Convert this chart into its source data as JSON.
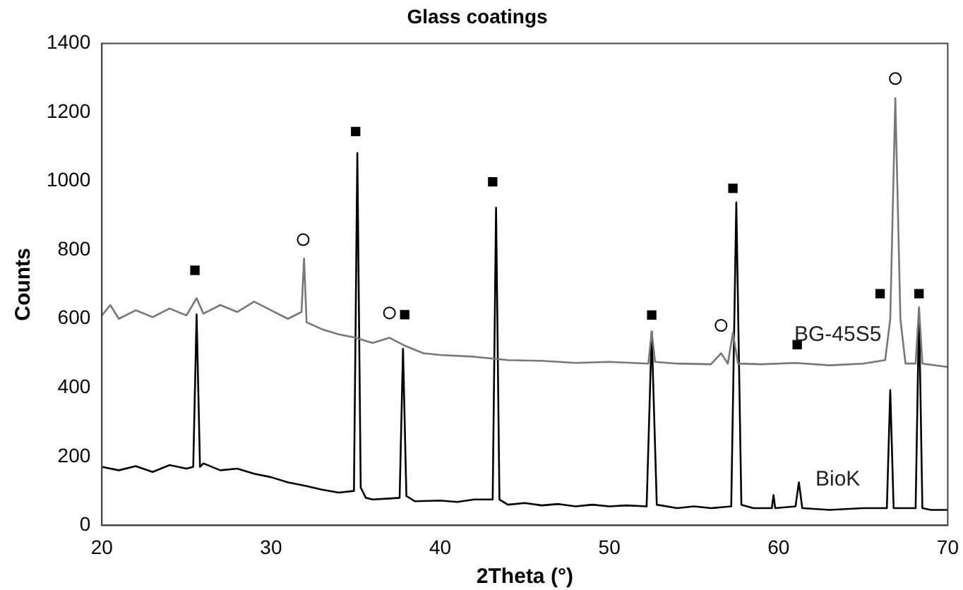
{
  "chart_data": {
    "type": "line",
    "title": "Glass coatings",
    "xlabel": "2Theta (°)",
    "ylabel": "Counts",
    "xlim": [
      20,
      70
    ],
    "xticks": [
      20,
      30,
      40,
      50,
      60,
      70
    ],
    "ylim": [
      0,
      1400
    ],
    "yticks": [
      0,
      200,
      400,
      600,
      800,
      1000,
      1200,
      1400
    ],
    "grid": false,
    "legend": false,
    "marker": "none",
    "line_style": "solid",
    "series": [
      {
        "name": "BG-45S5",
        "color": "#777777",
        "x": [
          20,
          20.5,
          21,
          22,
          23,
          24,
          25,
          25.6,
          26,
          27,
          28,
          29,
          30,
          31,
          31.8,
          31.95,
          32.1,
          33,
          34,
          35,
          36,
          37,
          38,
          39,
          40,
          42,
          44,
          46,
          48,
          50,
          52.3,
          52.5,
          52.7,
          54,
          56,
          56.6,
          57,
          57.3,
          57.6,
          59,
          61,
          63,
          65,
          66.3,
          66.6,
          66.9,
          67.2,
          67.5,
          68.1,
          68.3,
          68.5,
          70
        ],
        "values": [
          610,
          640,
          600,
          625,
          605,
          630,
          610,
          660,
          615,
          640,
          620,
          650,
          625,
          600,
          620,
          775,
          590,
          570,
          555,
          545,
          530,
          545,
          520,
          500,
          495,
          490,
          480,
          478,
          472,
          475,
          470,
          563,
          475,
          470,
          468,
          500,
          470,
          560,
          470,
          468,
          472,
          465,
          470,
          480,
          600,
          1241,
          600,
          470,
          470,
          634,
          470,
          460
        ]
      },
      {
        "name": "BioK",
        "color": "#000000",
        "x": [
          20,
          21,
          22,
          23,
          24,
          25,
          25.4,
          25.6,
          25.8,
          26,
          27,
          28,
          29,
          30,
          31,
          32,
          33,
          34,
          34.9,
          35.1,
          35.3,
          35.6,
          36,
          37,
          37.6,
          37.8,
          38,
          38.5,
          40,
          41,
          42,
          43.1,
          43.3,
          43.5,
          44,
          45,
          46,
          47,
          48,
          49,
          50,
          51,
          52.2,
          52.5,
          52.8,
          54,
          55,
          56,
          57.2,
          57.5,
          57.8,
          58.5,
          59.6,
          59.7,
          59.8,
          61,
          61.2,
          61.4,
          63,
          65,
          66.4,
          66.6,
          66.8,
          68.1,
          68.3,
          68.5,
          69,
          70
        ],
        "values": [
          170,
          160,
          172,
          155,
          175,
          165,
          170,
          613,
          170,
          180,
          160,
          165,
          150,
          140,
          125,
          115,
          104,
          95,
          100,
          1082,
          110,
          80,
          75,
          78,
          80,
          513,
          85,
          70,
          72,
          68,
          75,
          75,
          923,
          75,
          60,
          65,
          58,
          62,
          55,
          60,
          55,
          58,
          55,
          563,
          60,
          50,
          55,
          50,
          55,
          938,
          60,
          50,
          50,
          88,
          50,
          55,
          125,
          50,
          45,
          50,
          50,
          393,
          50,
          50,
          626,
          50,
          45,
          45
        ]
      },
      {
        "type": "scatter",
        "marker": "square",
        "color": "#000000",
        "x": [
          25.5,
          35,
          37.9,
          43.1,
          52.5,
          57.3,
          61.1,
          66,
          68.3
        ],
        "values": [
          741,
          1144,
          612,
          998,
          611,
          979,
          525,
          673,
          673
        ]
      },
      {
        "type": "scatter",
        "marker": "circle",
        "color": "#ffffff",
        "x": [
          31.9,
          37,
          56.6,
          66.9
        ],
        "values": [
          830,
          617,
          581,
          1298
        ]
      }
    ]
  }
}
